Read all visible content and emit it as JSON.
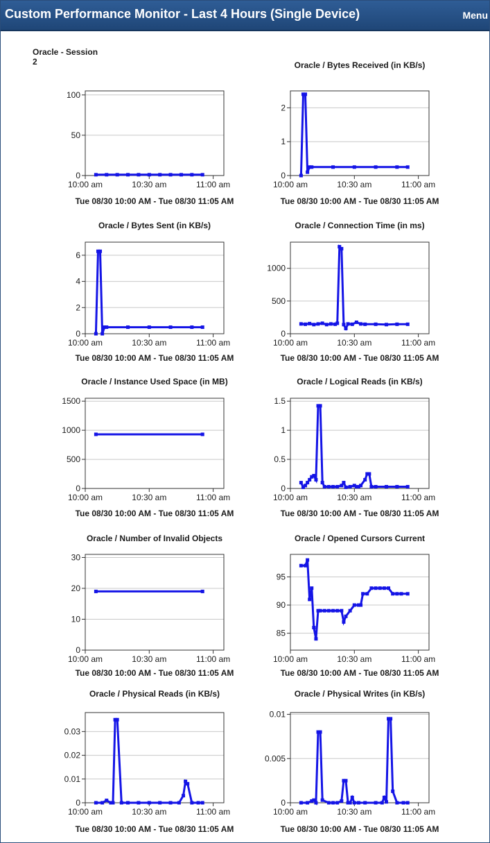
{
  "header": {
    "title": "Custom Performance Monitor - Last 4 Hours (Single Device)",
    "menu_label": "Menu"
  },
  "colors": {
    "header_bg": "#2a5286",
    "series": "#1414e6",
    "grid": "#c8c8c8"
  },
  "chart_data": [
    {
      "type": "line",
      "title": "Oracle - Session",
      "subtitle": "2",
      "xlabel": "Tue 08/30 10:00 AM - Tue 08/30 11:05 AM",
      "ylim": [
        0,
        105
      ],
      "yticks": [
        0,
        50,
        100
      ],
      "xlim": [
        "10:00 am",
        "11:05 am"
      ],
      "xticks": [
        "10:00 am",
        "10:30 am",
        "11:00 am"
      ],
      "series": [
        {
          "x": [
            "10:05 am",
            "10:10 am",
            "10:15 am",
            "10:20 am",
            "10:25 am",
            "10:30 am",
            "10:35 am",
            "10:40 am",
            "10:45 am",
            "10:50 am",
            "10:55 am"
          ],
          "y": [
            1,
            1,
            1,
            1,
            1,
            1,
            1,
            1,
            1,
            1,
            1
          ]
        }
      ]
    },
    {
      "type": "line",
      "title": "Oracle / Bytes Received (in KB/s)",
      "xlabel": "Tue 08/30 10:00 AM - Tue 08/30 11:05 AM",
      "ylim": [
        0,
        2.5
      ],
      "yticks": [
        0,
        1,
        2
      ],
      "xlim": [
        "10:00 am",
        "11:05 am"
      ],
      "xticks": [
        "10:00 am",
        "10:30 am",
        "11:00 am"
      ],
      "series": [
        {
          "x": [
            "10:05 am",
            "10:06 am",
            "10:07 am",
            "10:08 am",
            "10:09 am",
            "10:10 am",
            "10:20 am",
            "10:30 am",
            "10:40 am",
            "10:50 am",
            "10:55 am"
          ],
          "y": [
            0,
            2.4,
            2.4,
            0.1,
            0.25,
            0.25,
            0.25,
            0.25,
            0.25,
            0.25,
            0.25
          ]
        }
      ]
    },
    {
      "type": "line",
      "title": "Oracle / Bytes Sent (in KB/s)",
      "xlabel": "Tue 08/30 10:00 AM - Tue 08/30 11:05 AM",
      "ylim": [
        0,
        7
      ],
      "yticks": [
        0,
        2,
        4,
        6
      ],
      "xlim": [
        "10:00 am",
        "11:05 am"
      ],
      "xticks": [
        "10:00 am",
        "10:30 am",
        "11:00 am"
      ],
      "series": [
        {
          "x": [
            "10:05 am",
            "10:06 am",
            "10:07 am",
            "10:08 am",
            "10:09 am",
            "10:10 am",
            "10:20 am",
            "10:30 am",
            "10:40 am",
            "10:50 am",
            "10:55 am"
          ],
          "y": [
            0,
            6.3,
            6.3,
            0,
            0.5,
            0.5,
            0.5,
            0.5,
            0.5,
            0.5,
            0.5
          ]
        }
      ]
    },
    {
      "type": "line",
      "title": "Oracle / Connection Time (in ms)",
      "xlabel": "Tue 08/30 10:00 AM - Tue 08/30 11:05 AM",
      "ylim": [
        0,
        1400
      ],
      "yticks": [
        0,
        500,
        1000
      ],
      "xlim": [
        "10:00 am",
        "11:05 am"
      ],
      "xticks": [
        "10:00 am",
        "10:30 am",
        "11:00 am"
      ],
      "series": [
        {
          "x": [
            "10:05 am",
            "10:07 am",
            "10:09 am",
            "10:11 am",
            "10:13 am",
            "10:15 am",
            "10:17 am",
            "10:19 am",
            "10:21 am",
            "10:22 am",
            "10:23 am",
            "10:24 am",
            "10:25 am",
            "10:26 am",
            "10:27 am",
            "10:29 am",
            "10:31 am",
            "10:33 am",
            "10:35 am",
            "10:40 am",
            "10:45 am",
            "10:50 am",
            "10:55 am"
          ],
          "y": [
            150,
            145,
            155,
            140,
            150,
            160,
            140,
            150,
            145,
            160,
            1330,
            1300,
            140,
            80,
            150,
            145,
            175,
            150,
            145,
            145,
            140,
            145,
            145
          ]
        }
      ]
    },
    {
      "type": "line",
      "title": "Oracle / Instance Used Space (in MB)",
      "xlabel": "Tue 08/30 10:00 AM - Tue 08/30 11:05 AM",
      "ylim": [
        0,
        1550
      ],
      "yticks": [
        0,
        500,
        1000,
        1500
      ],
      "xlim": [
        "10:00 am",
        "11:05 am"
      ],
      "xticks": [
        "10:00 am",
        "10:30 am",
        "11:00 am"
      ],
      "series": [
        {
          "x": [
            "10:05 am",
            "10:55 am"
          ],
          "y": [
            930,
            930
          ]
        }
      ]
    },
    {
      "type": "line",
      "title": "Oracle / Logical Reads (in KB/s)",
      "xlabel": "Tue 08/30 10:00 AM - Tue 08/30 11:05 AM",
      "ylim": [
        0,
        1.55
      ],
      "yticks": [
        0,
        0.5,
        1,
        1.5
      ],
      "xlim": [
        "10:00 am",
        "11:05 am"
      ],
      "xticks": [
        "10:00 am",
        "10:30 am",
        "11:00 am"
      ],
      "series": [
        {
          "x": [
            "10:05 am",
            "10:06 am",
            "10:07 am",
            "10:08 am",
            "10:09 am",
            "10:10 am",
            "10:11 am",
            "10:12 am",
            "10:13 am",
            "10:14 am",
            "10:15 am",
            "10:16 am",
            "10:18 am",
            "10:20 am",
            "10:22 am",
            "10:24 am",
            "10:25 am",
            "10:26 am",
            "10:28 am",
            "10:30 am",
            "10:31 am",
            "10:32 am",
            "10:33 am",
            "10:35 am",
            "10:36 am",
            "10:37 am",
            "10:38 am",
            "10:40 am",
            "10:45 am",
            "10:50 am",
            "10:55 am"
          ],
          "y": [
            0.1,
            0.02,
            0.05,
            0.1,
            0.15,
            0.2,
            0.22,
            0.15,
            1.42,
            1.42,
            0.1,
            0.03,
            0.03,
            0.03,
            0.03,
            0.05,
            0.1,
            0.02,
            0.03,
            0.05,
            0.03,
            0.03,
            0.05,
            0.15,
            0.25,
            0.25,
            0.03,
            0.03,
            0.03,
            0.03,
            0.03
          ]
        }
      ]
    },
    {
      "type": "line",
      "title": "Oracle / Number of Invalid Objects",
      "xlabel": "Tue 08/30 10:00 AM - Tue 08/30 11:05 AM",
      "ylim": [
        0,
        31
      ],
      "yticks": [
        0,
        10,
        20,
        30
      ],
      "xlim": [
        "10:00 am",
        "11:05 am"
      ],
      "xticks": [
        "10:00 am",
        "10:30 am",
        "11:00 am"
      ],
      "series": [
        {
          "x": [
            "10:05 am",
            "10:55 am"
          ],
          "y": [
            19,
            19
          ]
        }
      ]
    },
    {
      "type": "line",
      "title": "Oracle / Opened Cursors Current",
      "xlabel": "Tue 08/30 10:00 AM - Tue 08/30 11:05 AM",
      "ylim": [
        82,
        99
      ],
      "yticks": [
        85,
        90,
        95
      ],
      "xlim": [
        "10:00 am",
        "11:05 am"
      ],
      "xticks": [
        "10:00 am",
        "10:30 am",
        "11:00 am"
      ],
      "series": [
        {
          "x": [
            "10:05 am",
            "10:07 am",
            "10:08 am",
            "10:09 am",
            "10:10 am",
            "10:11 am",
            "10:12 am",
            "10:13 am",
            "10:14 am",
            "10:16 am",
            "10:18 am",
            "10:20 am",
            "10:22 am",
            "10:24 am",
            "10:25 am",
            "10:26 am",
            "10:28 am",
            "10:30 am",
            "10:32 am",
            "10:33 am",
            "10:34 am",
            "10:36 am",
            "10:38 am",
            "10:40 am",
            "10:42 am",
            "10:44 am",
            "10:46 am",
            "10:48 am",
            "10:50 am",
            "10:52 am",
            "10:55 am"
          ],
          "y": [
            97,
            97,
            98,
            91,
            93,
            86,
            84,
            89,
            89,
            89,
            89,
            89,
            89,
            89,
            87,
            88,
            89,
            90,
            90,
            90,
            92,
            92,
            93,
            93,
            93,
            93,
            93,
            92,
            92,
            92,
            92
          ]
        }
      ]
    },
    {
      "type": "line",
      "title": "Oracle / Physical Reads (in KB/s)",
      "xlabel": "Tue 08/30 10:00 AM - Tue 08/30 11:05 AM",
      "ylim": [
        0,
        0.038
      ],
      "yticks": [
        0,
        0.01,
        0.02,
        0.03
      ],
      "xlim": [
        "10:00 am",
        "11:05 am"
      ],
      "xticks": [
        "10:00 am",
        "10:30 am",
        "11:00 am"
      ],
      "series": [
        {
          "x": [
            "10:05 am",
            "10:08 am",
            "10:10 am",
            "10:12 am",
            "10:13 am",
            "10:14 am",
            "10:15 am",
            "10:17 am",
            "10:20 am",
            "10:25 am",
            "10:30 am",
            "10:35 am",
            "10:40 am",
            "10:44 am",
            "10:46 am",
            "10:47 am",
            "10:48 am",
            "10:50 am",
            "10:53 am",
            "10:55 am"
          ],
          "y": [
            0,
            0,
            0.001,
            0,
            0,
            0.035,
            0.035,
            0,
            0,
            0,
            0,
            0,
            0,
            0,
            0.003,
            0.009,
            0.008,
            0,
            0,
            0
          ]
        }
      ]
    },
    {
      "type": "line",
      "title": "Oracle / Physical Writes (in KB/s)",
      "xlabel": "Tue 08/30 10:00 AM - Tue 08/30 11:05 AM",
      "ylim": [
        0,
        0.0102
      ],
      "yticks": [
        0,
        0.005,
        0.01
      ],
      "xlim": [
        "10:00 am",
        "11:05 am"
      ],
      "xticks": [
        "10:00 am",
        "10:30 am",
        "11:00 am"
      ],
      "series": [
        {
          "x": [
            "10:05 am",
            "10:08 am",
            "10:10 am",
            "10:11 am",
            "10:12 am",
            "10:13 am",
            "10:14 am",
            "10:15 am",
            "10:18 am",
            "10:20 am",
            "10:22 am",
            "10:24 am",
            "10:25 am",
            "10:26 am",
            "10:27 am",
            "10:28 am",
            "10:29 am",
            "10:30 am",
            "10:32 am",
            "10:35 am",
            "10:40 am",
            "10:43 am",
            "10:44 am",
            "10:45 am",
            "10:46 am",
            "10:47 am",
            "10:48 am",
            "10:50 am",
            "10:53 am",
            "10:55 am"
          ],
          "y": [
            0,
            0,
            0.0002,
            0.0003,
            0,
            0.008,
            0.008,
            0.0003,
            0,
            0,
            0,
            0.0002,
            0.0025,
            0.0025,
            0,
            0,
            0.0006,
            0,
            0,
            0,
            0,
            0,
            0.0006,
            0.0001,
            0.0095,
            0.0095,
            0.0013,
            0,
            0,
            0
          ]
        }
      ]
    }
  ]
}
